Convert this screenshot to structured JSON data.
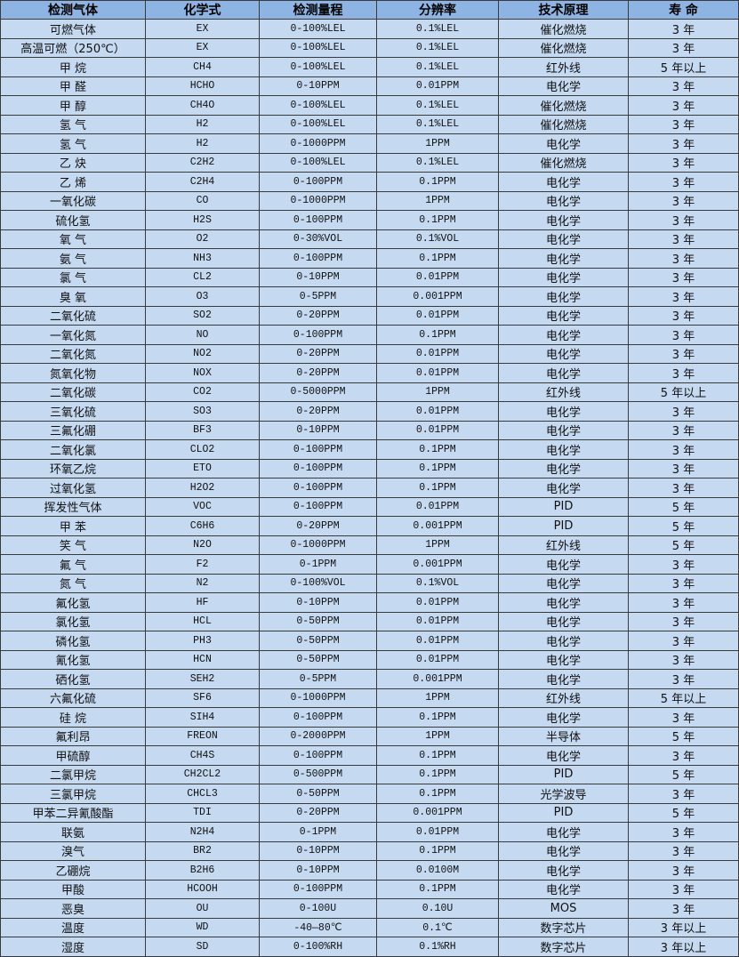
{
  "colors": {
    "header_bg": "#8db4e2",
    "row_bg": "#c5d9f1",
    "border": "#3a3a3a"
  },
  "table": {
    "headers": [
      "检测气体",
      "化学式",
      "检测量程",
      "分辨率",
      "技术原理",
      "寿 命"
    ],
    "rows": [
      [
        "可燃气体",
        "EX",
        "0-100%LEL",
        "0.1%LEL",
        "催化燃烧",
        "3 年"
      ],
      [
        "高温可燃（250℃）",
        "EX",
        "0-100%LEL",
        "0.1%LEL",
        "催化燃烧",
        "3 年"
      ],
      [
        "甲 烷",
        "CH4",
        "0-100%LEL",
        "0.1%LEL",
        "红外线",
        "5 年以上"
      ],
      [
        "甲 醛",
        "HCHO",
        "0-10PPM",
        "0.01PPM",
        "电化学",
        "3 年"
      ],
      [
        "甲 醇",
        "CH4O",
        "0-100%LEL",
        "0.1%LEL",
        "催化燃烧",
        "3 年"
      ],
      [
        "氢 气",
        "H2",
        "0-100%LEL",
        "0.1%LEL",
        "催化燃烧",
        "3 年"
      ],
      [
        "氢 气",
        "H2",
        "0-1000PPM",
        "1PPM",
        "电化学",
        "3 年"
      ],
      [
        "乙 炔",
        "C2H2",
        "0-100%LEL",
        "0.1%LEL",
        "催化燃烧",
        "3 年"
      ],
      [
        "乙 烯",
        "C2H4",
        "0-100PPM",
        "0.1PPM",
        "电化学",
        "3 年"
      ],
      [
        "一氧化碳",
        "CO",
        "0-1000PPM",
        "1PPM",
        "电化学",
        "3 年"
      ],
      [
        "硫化氢",
        "H2S",
        "0-100PPM",
        "0.1PPM",
        "电化学",
        "3 年"
      ],
      [
        "氧 气",
        "O2",
        "0-30%VOL",
        "0.1%VOL",
        "电化学",
        "3 年"
      ],
      [
        "氨 气",
        "NH3",
        "0-100PPM",
        "0.1PPM",
        "电化学",
        "3 年"
      ],
      [
        "氯 气",
        "CL2",
        "0-10PPM",
        "0.01PPM",
        "电化学",
        "3 年"
      ],
      [
        "臭 氧",
        "O3",
        "0-5PPM",
        "0.001PPM",
        "电化学",
        "3 年"
      ],
      [
        "二氧化硫",
        "SO2",
        "0-20PPM",
        "0.01PPM",
        "电化学",
        "3 年"
      ],
      [
        "一氧化氮",
        "NO",
        "0-100PPM",
        "0.1PPM",
        "电化学",
        "3 年"
      ],
      [
        "二氧化氮",
        "NO2",
        "0-20PPM",
        "0.01PPM",
        "电化学",
        "3 年"
      ],
      [
        "氮氧化物",
        "NOX",
        "0-20PPM",
        "0.01PPM",
        "电化学",
        "3 年"
      ],
      [
        "二氧化碳",
        "CO2",
        "0-5000PPM",
        "1PPM",
        "红外线",
        "5 年以上"
      ],
      [
        "三氧化硫",
        "SO3",
        "0-20PPM",
        "0.01PPM",
        "电化学",
        "3 年"
      ],
      [
        "三氟化硼",
        "BF3",
        "0-10PPM",
        "0.01PPM",
        "电化学",
        "3 年"
      ],
      [
        "二氧化氯",
        "CLO2",
        "0-100PPM",
        "0.1PPM",
        "电化学",
        "3 年"
      ],
      [
        "环氧乙烷",
        "ETO",
        "0-100PPM",
        "0.1PPM",
        "电化学",
        "3 年"
      ],
      [
        "过氧化氢",
        "H2O2",
        "0-100PPM",
        "0.1PPM",
        "电化学",
        "3 年"
      ],
      [
        "挥发性气体",
        "VOC",
        "0-100PPM",
        "0.01PPM",
        "PID",
        "5 年"
      ],
      [
        "甲 苯",
        "C6H6",
        "0-20PPM",
        "0.001PPM",
        "PID",
        "5 年"
      ],
      [
        "笑 气",
        "N2O",
        "0-1000PPM",
        "1PPM",
        "红外线",
        "5 年"
      ],
      [
        "氟 气",
        "F2",
        "0-1PPM",
        "0.001PPM",
        "电化学",
        "3 年"
      ],
      [
        "氮 气",
        "N2",
        "0-100%VOL",
        "0.1%VOL",
        "电化学",
        "3 年"
      ],
      [
        "氟化氢",
        "HF",
        "0-10PPM",
        "0.01PPM",
        "电化学",
        "3 年"
      ],
      [
        "氯化氢",
        "HCL",
        "0-50PPM",
        "0.01PPM",
        "电化学",
        "3 年"
      ],
      [
        "磷化氢",
        "PH3",
        "0-50PPM",
        "0.01PPM",
        "电化学",
        "3 年"
      ],
      [
        "氰化氢",
        "HCN",
        "0-50PPM",
        "0.01PPM",
        "电化学",
        "3 年"
      ],
      [
        "硒化氢",
        "SEH2",
        "0-5PPM",
        "0.001PPM",
        "电化学",
        "3 年"
      ],
      [
        "六氟化硫",
        "SF6",
        "0-1000PPM",
        "1PPM",
        "红外线",
        "5 年以上"
      ],
      [
        "硅 烷",
        "SIH4",
        "0-100PPM",
        "0.1PPM",
        "电化学",
        "3 年"
      ],
      [
        "氟利昂",
        "FREON",
        "0-2000PPM",
        "1PPM",
        "半导体",
        "5 年"
      ],
      [
        "甲硫醇",
        "CH4S",
        "0-100PPM",
        "0.1PPM",
        "电化学",
        "3 年"
      ],
      [
        "二氯甲烷",
        "CH2CL2",
        "0-500PPM",
        "0.1PPM",
        "PID",
        "5 年"
      ],
      [
        "三氯甲烷",
        "CHCL3",
        "0-50PPM",
        "0.1PPM",
        "光学波导",
        "3 年"
      ],
      [
        "甲苯二异氰酸酯",
        "TDI",
        "0-20PPM",
        "0.001PPM",
        "PID",
        "5 年"
      ],
      [
        "联氨",
        "N2H4",
        "0-1PPM",
        "0.01PPM",
        "电化学",
        "3 年"
      ],
      [
        "溴气",
        "BR2",
        "0-10PPM",
        "0.1PPM",
        "电化学",
        "3 年"
      ],
      [
        "乙硼烷",
        "B2H6",
        "0-10PPM",
        "0.0100M",
        "电化学",
        "3 年"
      ],
      [
        "甲酸",
        "HCOOH",
        "0-100PPM",
        "0.1PPM",
        "电化学",
        "3 年"
      ],
      [
        "恶臭",
        "OU",
        "0-100U",
        "0.10U",
        "MOS",
        "3 年"
      ],
      [
        "温度",
        "WD",
        "-40—80℃",
        "0.1℃",
        "数字芯片",
        "3 年以上"
      ],
      [
        "湿度",
        "SD",
        "0-100%RH",
        "0.1%RH",
        "数字芯片",
        "3 年以上"
      ]
    ]
  }
}
